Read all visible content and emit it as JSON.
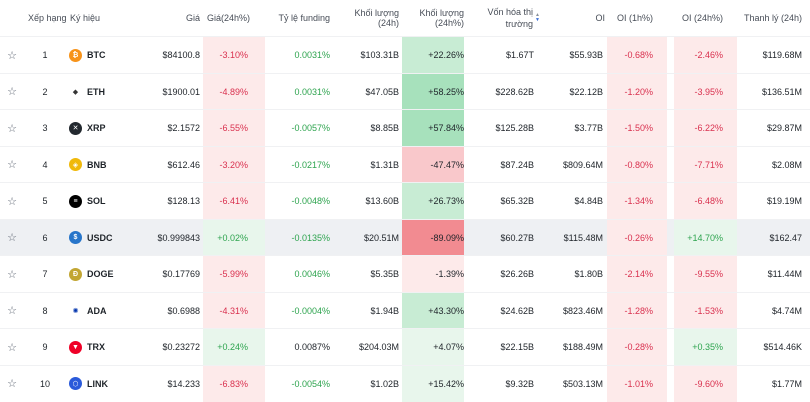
{
  "header": {
    "rank": "Xếp hạng",
    "symbol": "Ký hiệu",
    "price": "Giá",
    "change24h": "Giá(24h%)",
    "funding": "Tỷ lệ funding",
    "volume": "Khối lượng (24h)",
    "volume_pct": "Khối lượng (24h%)",
    "mcap_line1": "Vốn hóa thị",
    "mcap_line2": "trường",
    "oi": "OI",
    "oi1h": "OI (1h%)",
    "oi24h": "OI (24h%)",
    "liq": "Thanh lý (24h)"
  },
  "rows": [
    {
      "rank": "1",
      "sym": "BTC",
      "icon": "bitcoin-icon",
      "price": "$84100.8",
      "chg": "-3.10%",
      "fund": "0.0031%",
      "vol": "$103.31B",
      "volp": "+22.26%",
      "mcap": "$1.67T",
      "oi": "$55.93B",
      "oi1h": "-0.68%",
      "oi24h": "-2.46%",
      "liq": "$119.68M"
    },
    {
      "rank": "2",
      "sym": "ETH",
      "icon": "ethereum-icon",
      "price": "$1900.01",
      "chg": "-4.89%",
      "fund": "0.0031%",
      "vol": "$47.05B",
      "volp": "+58.25%",
      "mcap": "$228.62B",
      "oi": "$22.12B",
      "oi1h": "-1.20%",
      "oi24h": "-3.95%",
      "liq": "$136.51M"
    },
    {
      "rank": "3",
      "sym": "XRP",
      "icon": "xrp-icon",
      "price": "$2.1572",
      "chg": "-6.55%",
      "fund": "-0.0057%",
      "vol": "$8.85B",
      "volp": "+57.84%",
      "mcap": "$125.28B",
      "oi": "$3.77B",
      "oi1h": "-1.50%",
      "oi24h": "-6.22%",
      "liq": "$29.87M"
    },
    {
      "rank": "4",
      "sym": "BNB",
      "icon": "bnb-icon",
      "price": "$612.46",
      "chg": "-3.20%",
      "fund": "-0.0217%",
      "vol": "$1.31B",
      "volp": "-47.47%",
      "mcap": "$87.24B",
      "oi": "$809.64M",
      "oi1h": "-0.80%",
      "oi24h": "-7.71%",
      "liq": "$2.08M"
    },
    {
      "rank": "5",
      "sym": "SOL",
      "icon": "solana-icon",
      "price": "$128.13",
      "chg": "-6.41%",
      "fund": "-0.0048%",
      "vol": "$13.60B",
      "volp": "+26.73%",
      "mcap": "$65.32B",
      "oi": "$4.84B",
      "oi1h": "-1.34%",
      "oi24h": "-6.48%",
      "liq": "$19.19M"
    },
    {
      "rank": "6",
      "sym": "USDC",
      "icon": "usdc-icon",
      "price": "$0.999843",
      "chg": "+0.02%",
      "fund": "-0.0135%",
      "vol": "$20.51M",
      "volp": "-89.09%",
      "mcap": "$60.27B",
      "oi": "$115.48M",
      "oi1h": "-0.26%",
      "oi24h": "+14.70%",
      "liq": "$162.47"
    },
    {
      "rank": "7",
      "sym": "DOGE",
      "icon": "dogecoin-icon",
      "price": "$0.17769",
      "chg": "-5.99%",
      "fund": "0.0046%",
      "vol": "$5.35B",
      "volp": "-1.39%",
      "mcap": "$26.26B",
      "oi": "$1.80B",
      "oi1h": "-2.14%",
      "oi24h": "-9.55%",
      "liq": "$11.44M"
    },
    {
      "rank": "8",
      "sym": "ADA",
      "icon": "cardano-icon",
      "price": "$0.6988",
      "chg": "-4.31%",
      "fund": "-0.0004%",
      "vol": "$1.94B",
      "volp": "+43.30%",
      "mcap": "$24.62B",
      "oi": "$823.46M",
      "oi1h": "-1.28%",
      "oi24h": "-1.53%",
      "liq": "$4.74M"
    },
    {
      "rank": "9",
      "sym": "TRX",
      "icon": "tron-icon",
      "price": "$0.23272",
      "chg": "+0.24%",
      "fund": "0.0087%",
      "vol": "$204.03M",
      "volp": "+4.07%",
      "mcap": "$22.15B",
      "oi": "$188.49M",
      "oi1h": "-0.28%",
      "oi24h": "+0.35%",
      "liq": "$514.46K"
    },
    {
      "rank": "10",
      "sym": "LINK",
      "icon": "chainlink-icon",
      "price": "$14.233",
      "chg": "-6.83%",
      "fund": "-0.0054%",
      "vol": "$1.02B",
      "volp": "+15.42%",
      "mcap": "$9.32B",
      "oi": "$503.13M",
      "oi1h": "-1.01%",
      "oi24h": "-9.60%",
      "liq": "$1.77M"
    }
  ],
  "colors": {
    "pos_text": "#2ea44f",
    "neg_text": "#d9304e",
    "pos_bg_light": "#e8f6ec",
    "neg_bg_light": "#fdeaea",
    "pos_bg_mid": "#c8ecd4",
    "pos_bg_strong": "#a7e1bc",
    "neg_bg_mid": "#f9c8cb",
    "neg_bg_strong": "#f28b91"
  }
}
